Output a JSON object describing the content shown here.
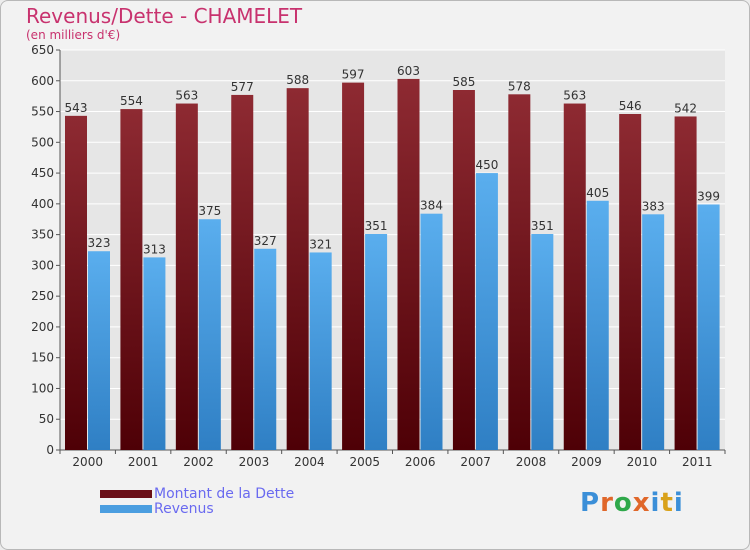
{
  "title": "Revenus/Dette - CHAMELET",
  "subtitle": "(en milliers d'€)",
  "logo": {
    "text": "Proxiti",
    "letter_colors": [
      "#3b8fd8",
      "#e0672a",
      "#2fa84a",
      "#e0672a",
      "#3b8fd8",
      "#d9a21b",
      "#3b8fd8"
    ]
  },
  "legend": [
    {
      "label": "Montant de la Dette",
      "color": "#6a0f17"
    },
    {
      "label": "Revenus",
      "color": "#4b9ee0"
    }
  ],
  "chart_data": {
    "type": "bar",
    "title": "Revenus/Dette - CHAMELET",
    "categories": [
      "2000",
      "2001",
      "2002",
      "2003",
      "2004",
      "2005",
      "2006",
      "2007",
      "2008",
      "2009",
      "2010",
      "2011"
    ],
    "series": [
      {
        "name": "Montant de la Dette",
        "color": "#7a1a22",
        "values": [
          543,
          554,
          563,
          577,
          588,
          597,
          603,
          585,
          578,
          563,
          546,
          542
        ]
      },
      {
        "name": "Revenus",
        "color": "#4b9ee0",
        "values": [
          323,
          313,
          375,
          327,
          321,
          351,
          384,
          450,
          351,
          405,
          383,
          399
        ]
      }
    ],
    "ylim": [
      0,
      650
    ],
    "yticks": [
      0,
      50,
      100,
      150,
      200,
      250,
      300,
      350,
      400,
      450,
      500,
      550,
      600,
      650
    ],
    "grid": true,
    "legend_position": "bottom-left"
  }
}
